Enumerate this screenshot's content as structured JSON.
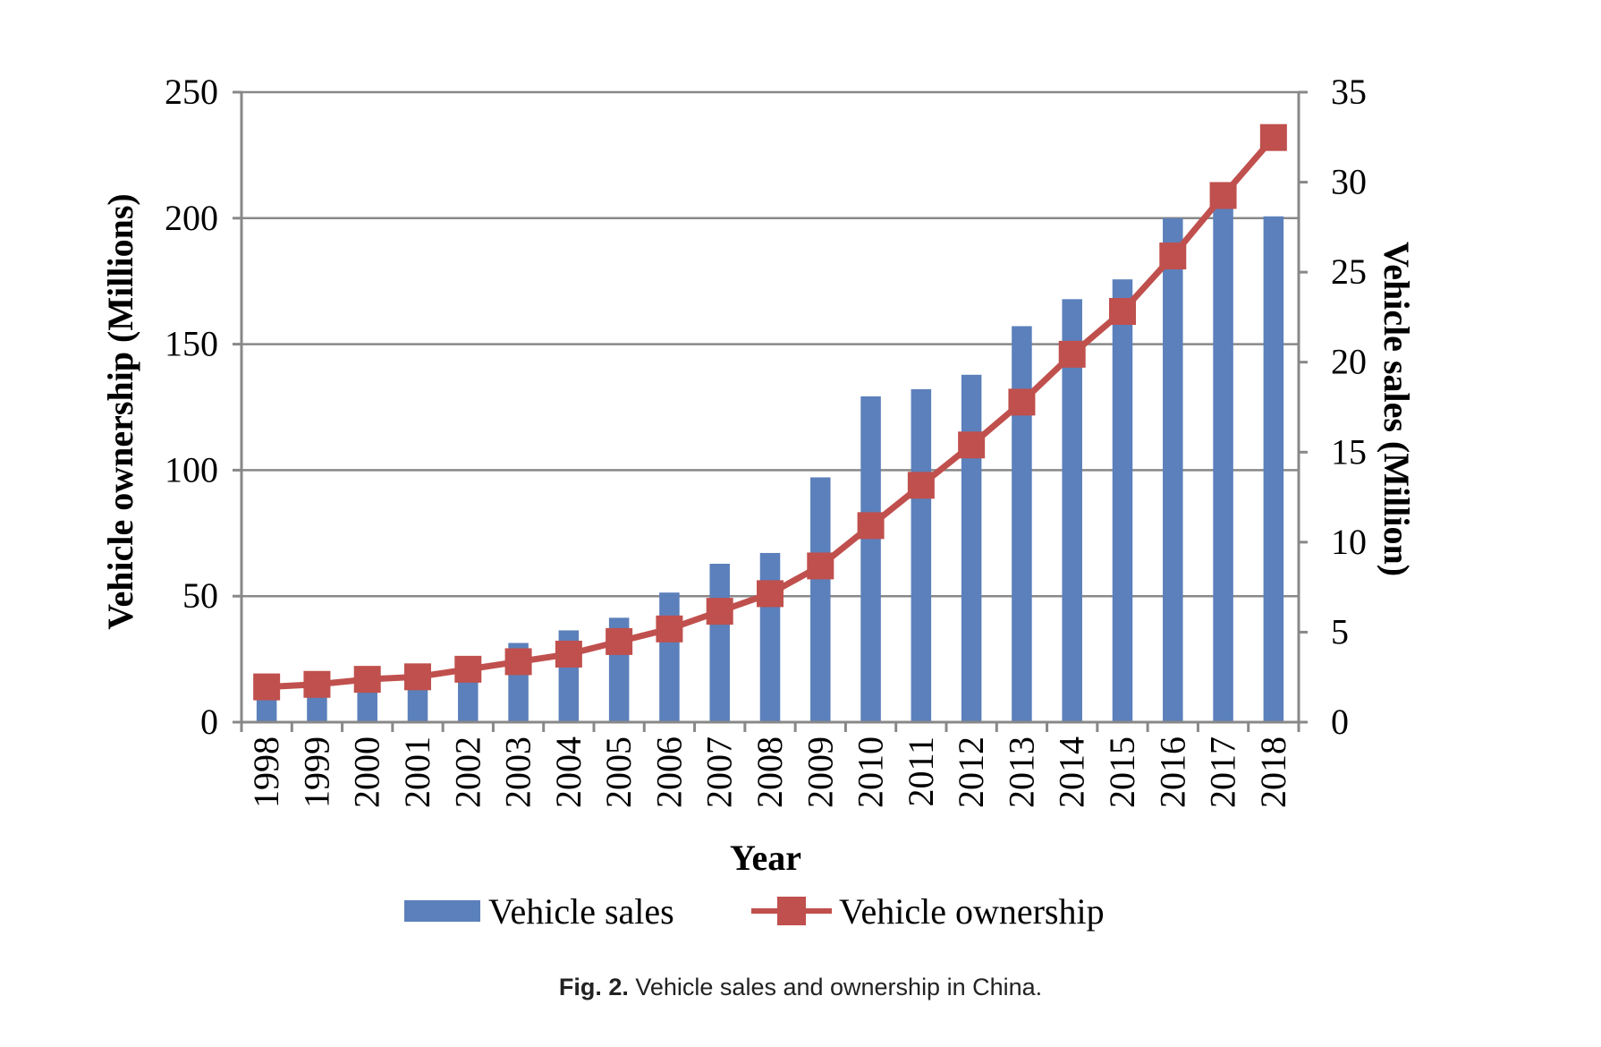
{
  "chart_data": {
    "type": "bar",
    "categories": [
      "1998",
      "1999",
      "2000",
      "2001",
      "2002",
      "2003",
      "2004",
      "2005",
      "2006",
      "2007",
      "2008",
      "2009",
      "2010",
      "2011",
      "2012",
      "2013",
      "2014",
      "2015",
      "2016",
      "2017",
      "2018"
    ],
    "series": [
      {
        "name": "Vehicle sales",
        "kind": "bar",
        "axis": "right",
        "color": "#5b80bb",
        "values": [
          1.6,
          1.8,
          2.1,
          2.4,
          3.2,
          4.4,
          5.1,
          5.8,
          7.2,
          8.8,
          9.4,
          13.6,
          18.1,
          18.5,
          19.3,
          22.0,
          23.5,
          24.6,
          28.0,
          28.9,
          28.1
        ]
      },
      {
        "name": "Vehicle ownership",
        "kind": "line",
        "axis": "left",
        "color": "#c0504d",
        "values": [
          14,
          15,
          17,
          18,
          21,
          24,
          27,
          32,
          37,
          44,
          51,
          62,
          78,
          94,
          110,
          127,
          146,
          163,
          185,
          209,
          232
        ]
      }
    ],
    "xlabel": "Year",
    "ylabel_left": "Vehicle ownership (Millions)",
    "ylabel_right": "Vehicle sales (Million)",
    "ylim_left": [
      0,
      250
    ],
    "ylim_right": [
      0,
      35
    ],
    "yticks_left": [
      0,
      50,
      100,
      150,
      200,
      250
    ],
    "yticks_right": [
      0,
      5,
      10,
      15,
      20,
      25,
      30,
      35
    ],
    "grid": true,
    "legend_position": "bottom"
  },
  "caption": {
    "label": "Fig. 2.",
    "text": " Vehicle sales and ownership in China."
  }
}
